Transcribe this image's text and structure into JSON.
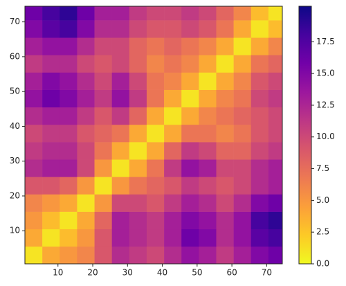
{
  "chart_data": {
    "type": "heatmap",
    "x_bins": [
      0.5,
      5.5,
      10.5,
      15.5,
      20.5,
      25.5,
      30.5,
      35.5,
      40.5,
      45.5,
      50.5,
      55.5,
      60.5,
      65.5,
      70.5,
      74.5
    ],
    "y_bins": [
      0.5,
      5.5,
      10.5,
      15.5,
      20.5,
      25.5,
      30.5,
      35.5,
      40.5,
      45.5,
      50.5,
      55.5,
      60.5,
      65.5,
      70.5,
      74.5
    ],
    "values": [
      [
        1,
        4,
        5,
        6,
        9,
        12,
        11,
        10,
        12,
        14,
        13,
        11,
        13,
        15,
        16
      ],
      [
        4,
        1,
        3,
        5,
        9,
        13,
        12,
        11,
        13,
        16,
        15,
        12,
        14,
        17,
        18
      ],
      [
        5,
        3,
        1,
        4,
        8,
        13,
        12,
        11,
        13,
        15,
        14,
        12,
        14,
        18,
        19
      ],
      [
        6,
        5,
        4,
        1,
        5,
        10,
        10,
        9,
        11,
        13,
        12,
        10,
        12,
        15,
        16
      ],
      [
        9,
        9,
        8,
        5,
        1,
        5,
        7,
        8,
        9,
        11,
        10,
        9,
        10,
        12,
        13
      ],
      [
        12,
        13,
        13,
        10,
        5,
        1,
        4,
        7,
        11,
        14,
        13,
        10,
        10,
        12,
        13
      ],
      [
        11,
        12,
        12,
        10,
        7,
        4,
        1,
        4,
        8,
        11,
        10,
        8,
        8,
        10,
        11
      ],
      [
        10,
        11,
        11,
        9,
        8,
        7,
        4,
        1,
        4,
        7,
        7,
        6,
        7,
        9,
        10
      ],
      [
        12,
        13,
        13,
        11,
        9,
        11,
        8,
        4,
        1,
        4,
        6,
        7,
        8,
        9,
        10
      ],
      [
        14,
        16,
        15,
        13,
        11,
        14,
        11,
        7,
        4,
        1,
        4,
        6,
        7,
        10,
        11
      ],
      [
        13,
        15,
        14,
        12,
        10,
        13,
        10,
        7,
        6,
        4,
        1,
        4,
        6,
        9,
        10
      ],
      [
        11,
        12,
        12,
        10,
        9,
        10,
        8,
        6,
        7,
        6,
        4,
        1,
        4,
        7,
        8
      ],
      [
        13,
        14,
        14,
        12,
        10,
        10,
        8,
        7,
        8,
        7,
        6,
        4,
        1,
        4,
        6
      ],
      [
        15,
        17,
        18,
        15,
        12,
        12,
        10,
        9,
        9,
        10,
        9,
        7,
        4,
        1,
        3
      ],
      [
        16,
        18,
        19,
        16,
        13,
        13,
        11,
        10,
        10,
        11,
        10,
        8,
        6,
        3,
        1
      ]
    ],
    "xlim": [
      0.5,
      74.5
    ],
    "ylim": [
      0.5,
      74.5
    ],
    "xticks": [
      10,
      20,
      30,
      40,
      50,
      60,
      70
    ],
    "yticks": [
      10,
      20,
      30,
      40,
      50,
      60,
      70
    ],
    "clim": [
      0,
      20.3
    ],
    "cticks": [
      {
        "value": 0,
        "label": "0.0"
      },
      {
        "value": 2.5,
        "label": "2.5"
      },
      {
        "value": 5,
        "label": "5.0"
      },
      {
        "value": 7.5,
        "label": "7.5"
      },
      {
        "value": 10,
        "label": "10.0"
      },
      {
        "value": 12.5,
        "label": "12.5"
      },
      {
        "value": 15,
        "label": "15.0"
      },
      {
        "value": 17.5,
        "label": "17.5"
      }
    ],
    "colormap": [
      "#f0f921",
      "#fdca26",
      "#fb9f3a",
      "#ed7953",
      "#d8576b",
      "#bd3786",
      "#9c179e",
      "#7201a8",
      "#46039f",
      "#0d0887"
    ]
  }
}
